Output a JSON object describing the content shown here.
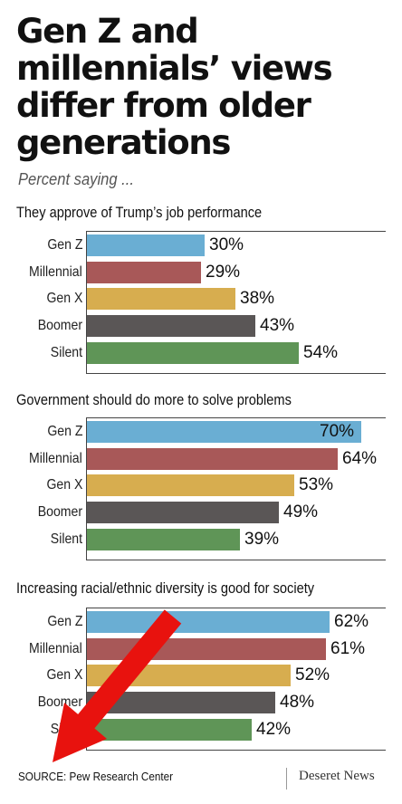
{
  "title": "Gen Z and millennials’ views differ from older generations",
  "subtitle": "Percent saying ...",
  "source": "SOURCE: Pew Research Center",
  "brand": "Deseret News",
  "colors": {
    "Gen Z": "#6aaed3",
    "Millennial": "#a85858",
    "Gen X": "#d7ad4f",
    "Boomer": "#5a5656",
    "Silent": "#5f9557",
    "arrow": "#e8120e"
  },
  "chart_data": [
    {
      "type": "bar",
      "orientation": "horizontal",
      "title": "They approve of Trump’s job performance",
      "categories": [
        "Gen Z",
        "Millennial",
        "Gen X",
        "Boomer",
        "Silent"
      ],
      "values": [
        30,
        29,
        38,
        43,
        54
      ],
      "value_labels": [
        "30%",
        "29%",
        "38%",
        "43%",
        "54%"
      ],
      "unit": "%",
      "xlim": [
        0,
        70
      ],
      "grid": false
    },
    {
      "type": "bar",
      "orientation": "horizontal",
      "title": "Government should do more to solve problems",
      "categories": [
        "Gen Z",
        "Millennial",
        "Gen X",
        "Boomer",
        "Silent"
      ],
      "values": [
        70,
        64,
        53,
        49,
        39
      ],
      "value_labels": [
        "70%",
        "64%",
        "53%",
        "49%",
        "39%"
      ],
      "unit": "%",
      "xlim": [
        0,
        70
      ],
      "grid": false
    },
    {
      "type": "bar",
      "orientation": "horizontal",
      "title": "Increasing racial/ethnic diversity is good for society",
      "categories": [
        "Gen Z",
        "Millennial",
        "Gen X",
        "Boomer",
        "Silent"
      ],
      "values": [
        62,
        61,
        52,
        48,
        42
      ],
      "value_labels": [
        "62%",
        "61%",
        "52%",
        "48%",
        "42%"
      ],
      "unit": "%",
      "xlim": [
        0,
        70
      ],
      "grid": false
    }
  ]
}
